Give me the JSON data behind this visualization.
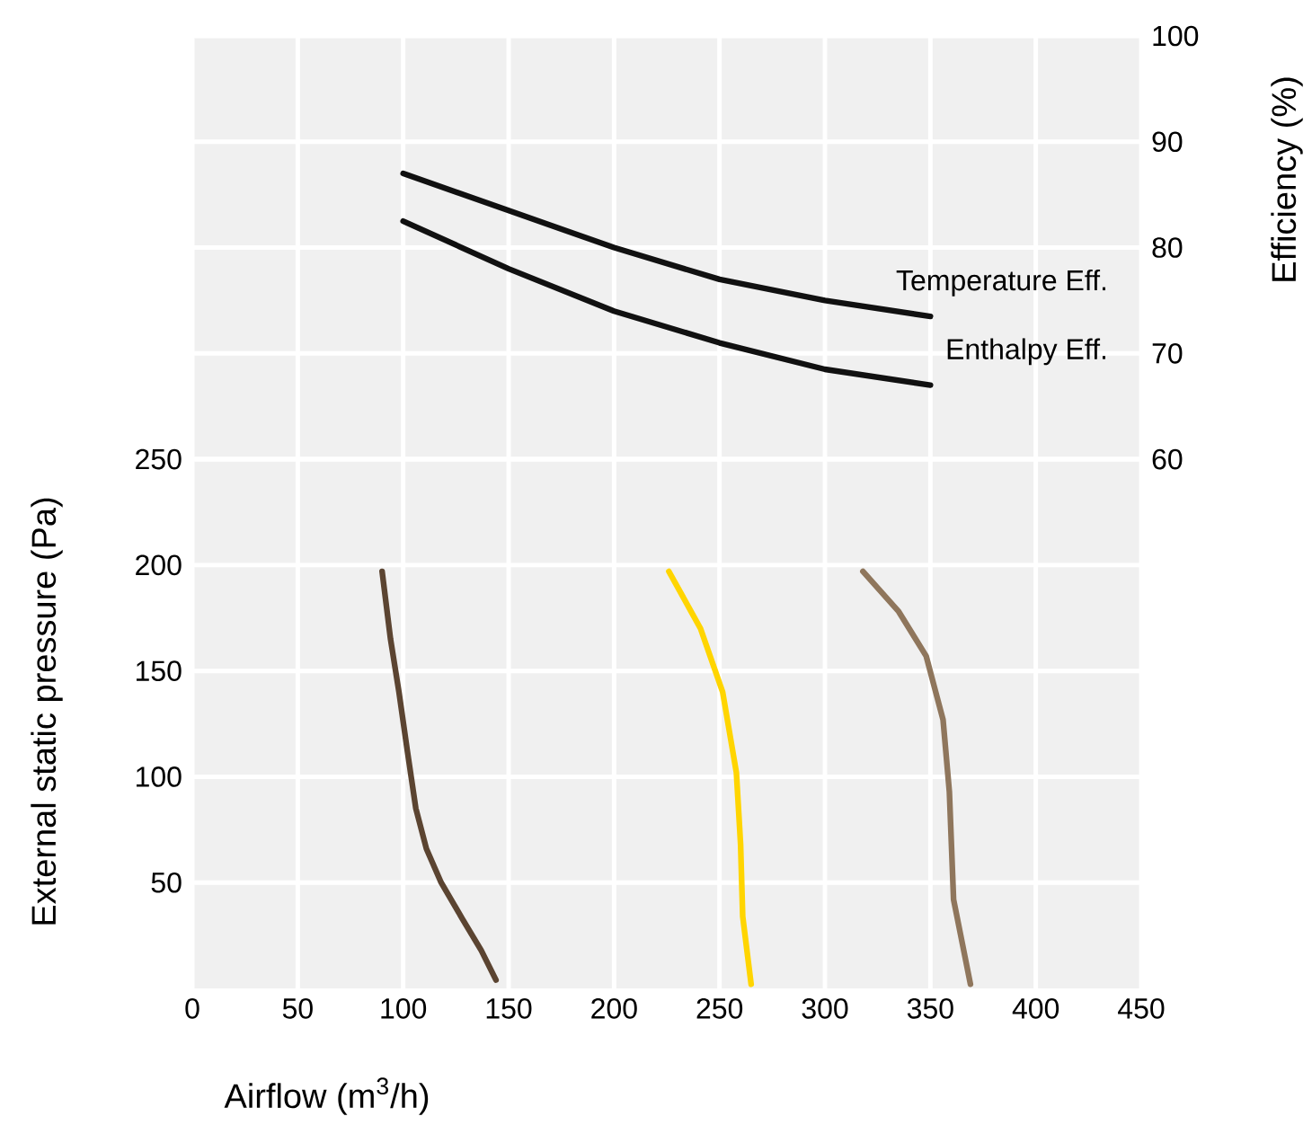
{
  "chart_data": {
    "type": "line",
    "xlabel": "Airflow (m$^{3}$/h)",
    "ylabel": "External static pressure (Pa)",
    "y2label": "Efficiency (%)",
    "xlim": [
      0,
      450
    ],
    "xticks": [
      0,
      50,
      100,
      150,
      200,
      250,
      300,
      350,
      400,
      450
    ],
    "ylim": [
      0,
      450
    ],
    "yticks": [
      50,
      100,
      150,
      200,
      250
    ],
    "y2lim": [
      10,
      100
    ],
    "y2ticks": [
      60,
      70,
      80,
      90,
      100
    ],
    "grid": true,
    "series": [
      {
        "color": "#5b4431",
        "x": [
          90,
          94,
          98,
          102,
          106,
          111,
          118,
          128,
          137,
          144
        ],
        "values": [
          197,
          165,
          140,
          112,
          85,
          66,
          50,
          33,
          18,
          4
        ]
      },
      {
        "color": "#ffd500",
        "x": [
          226,
          241,
          251.5,
          258,
          260,
          261,
          265
        ],
        "values": [
          197,
          170,
          140,
          102,
          68,
          34,
          2
        ]
      },
      {
        "color": "#8f765c",
        "x": [
          318,
          335,
          348,
          356,
          359,
          361,
          369
        ],
        "values": [
          197,
          178,
          157,
          127,
          93,
          42,
          2
        ]
      },
      {
        "name": "Temperature Eff.",
        "color": "#111111",
        "axis": "y2",
        "x": [
          100,
          150,
          200,
          250,
          300,
          350
        ],
        "values": [
          87,
          83.5,
          80,
          77,
          75,
          73.5
        ]
      },
      {
        "name": "Enthalpy Eff.",
        "color": "#111111",
        "axis": "y2",
        "x": [
          100,
          150,
          200,
          250,
          300,
          350
        ],
        "values": [
          82.5,
          78,
          74,
          71,
          68.5,
          67
        ]
      }
    ]
  }
}
